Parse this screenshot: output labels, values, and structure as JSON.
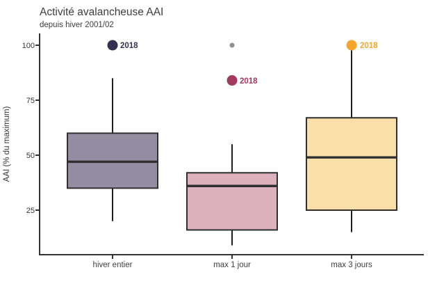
{
  "chart_data": {
    "type": "boxplot",
    "title": "Activité avalancheuse AAI",
    "subtitle": "depuis hiver 2001/02",
    "ylabel": "AAI (% du maximum)",
    "ylim": [
      5,
      105
    ],
    "yticks": [
      100,
      75,
      50,
      25
    ],
    "grid": false,
    "legend": "none",
    "categories": [
      "hiver entier",
      "max 1 jour",
      "max 3 jours"
    ],
    "series": [
      {
        "category": "hiver entier",
        "whisker_low": 20,
        "q1": 35,
        "median": 47,
        "q3": 60,
        "whisker_high": 85,
        "fill": "#948da2",
        "point_2018": {
          "label": "2018",
          "value": 100,
          "color": "#343150"
        }
      },
      {
        "category": "max 1 jour",
        "whisker_low": 9,
        "q1": 16,
        "median": 36,
        "q3": 42,
        "whisker_high": 55,
        "fill": "#dcb0bc",
        "outliers": [
          {
            "value": 100,
            "color": "#8f8f8f"
          }
        ],
        "point_2018": {
          "label": "2018",
          "value": 84,
          "color": "#a33a5e"
        }
      },
      {
        "category": "max 3 jours",
        "whisker_low": 15,
        "q1": 25,
        "median": 49,
        "q3": 67,
        "whisker_high": 100,
        "fill": "#fbdfa9",
        "point_2018": {
          "label": "2018",
          "value": 100,
          "color": "#f6a42a"
        }
      }
    ],
    "colors": {
      "box_stroke": "#2f2f2f",
      "whisker": "#1f1f1f",
      "axis": "#333333"
    }
  }
}
